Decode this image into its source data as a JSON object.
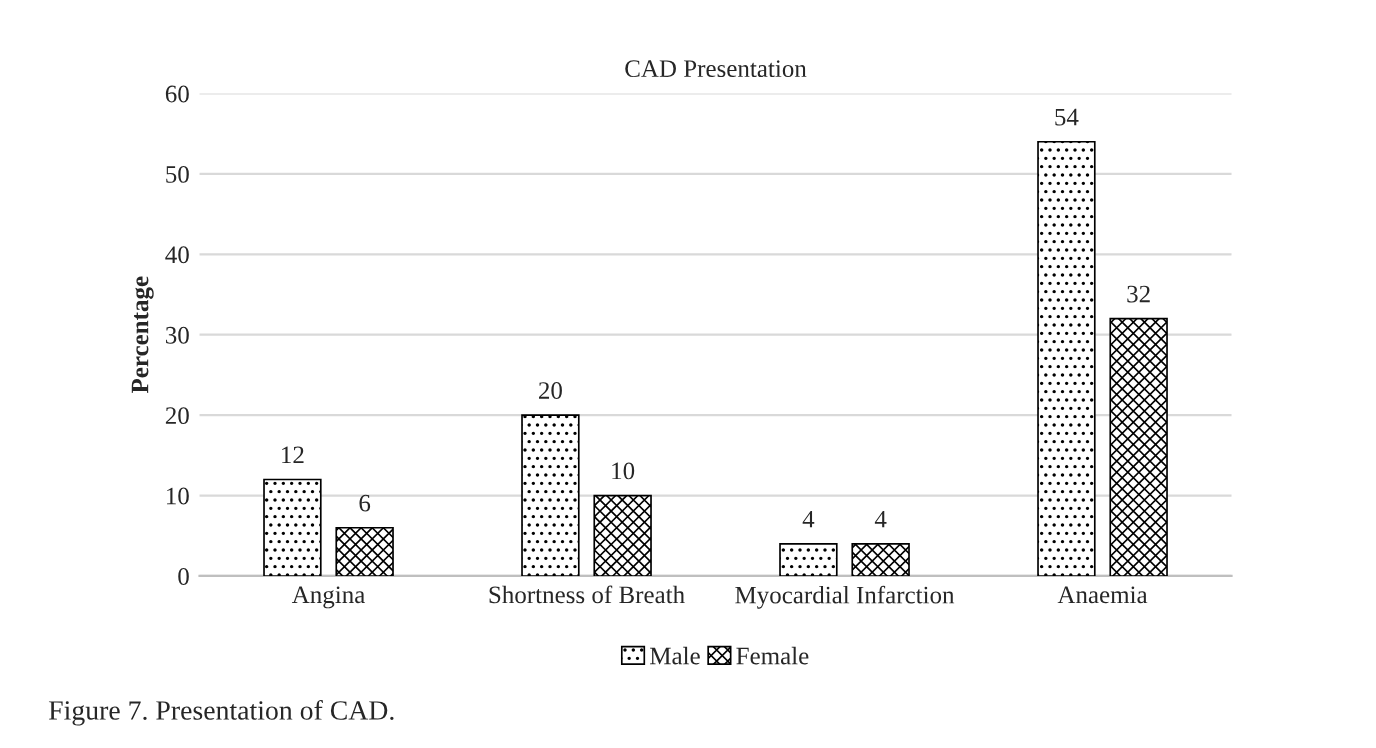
{
  "chart_data": {
    "type": "bar",
    "title": "CAD Presentation",
    "ylabel": "Percentage",
    "categories": [
      "Angina",
      "Shortness of Breath",
      "Myocardial Infarction",
      "Anaemia"
    ],
    "series": [
      {
        "name": "Male",
        "color": "#000000",
        "values": [
          12,
          20,
          4,
          54
        ]
      },
      {
        "name": "Female",
        "color": "#000000",
        "values": [
          6,
          10,
          4,
          32
        ]
      }
    ],
    "ylim": [
      0,
      60
    ],
    "yticks": [
      0,
      10,
      20,
      30,
      40,
      50,
      60
    ],
    "grid": "y",
    "legend": "bottom",
    "data_labels": true,
    "annotations": [
      "Figure 7. Presentation of CAD."
    ]
  }
}
